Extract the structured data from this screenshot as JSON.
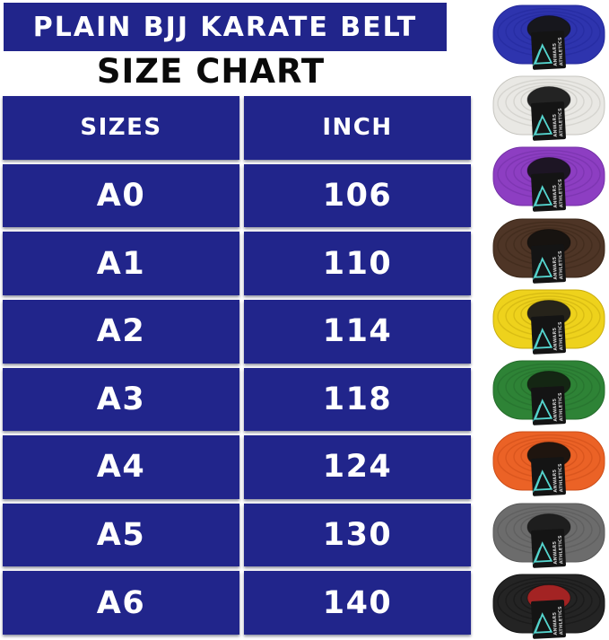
{
  "banner": {
    "title": "PLAIN BJJ KARATE BELT"
  },
  "subtitle": "SIZE CHART",
  "chart_data": {
    "type": "table",
    "title": "SIZE CHART",
    "columns": [
      "SIZES",
      "INCH"
    ],
    "rows": [
      [
        "A0",
        "106"
      ],
      [
        "A1",
        "110"
      ],
      [
        "A2",
        "114"
      ],
      [
        "A3",
        "118"
      ],
      [
        "A4",
        "124"
      ],
      [
        "A5",
        "130"
      ],
      [
        "A6",
        "140"
      ]
    ]
  },
  "colors": {
    "banner_blue": "#21258b",
    "table_blue": "#21258b",
    "banner_text": "#ffffff",
    "table_text": "#ffffff",
    "subtitle_text": "#0a0a0a",
    "background": "#ffffff",
    "brand_logo_teal": "#55d6cf"
  },
  "brand_label": {
    "icon": "triangle-logo-icon",
    "line1": "ANWARS",
    "line2": "ATHLETICS",
    "text_color": "#cfcfcf",
    "bg_color": "#141414"
  },
  "belts": [
    {
      "name": "blue",
      "color": "#2e34ae",
      "ring": "#23289a",
      "hole": "#17171d"
    },
    {
      "name": "white",
      "color": "#e9e8e4",
      "ring": "#c6c5bf",
      "hole": "#232323"
    },
    {
      "name": "purple",
      "color": "#8d3ec2",
      "ring": "#7330a6",
      "hole": "#1d1524"
    },
    {
      "name": "brown",
      "color": "#4e3526",
      "ring": "#3b2718",
      "hole": "#171310"
    },
    {
      "name": "yellow",
      "color": "#eed21c",
      "ring": "#c8ac0e",
      "hole": "#26231a"
    },
    {
      "name": "green",
      "color": "#2e8336",
      "ring": "#256b2b",
      "hole": "#142613"
    },
    {
      "name": "orange",
      "color": "#eb6226",
      "ring": "#cc4d18",
      "hole": "#1f150f"
    },
    {
      "name": "gray",
      "color": "#6c6c6c",
      "ring": "#575757",
      "hole": "#1e1e1e"
    },
    {
      "name": "black",
      "color": "#242424",
      "ring": "#141414",
      "hole": "#a32323"
    }
  ]
}
